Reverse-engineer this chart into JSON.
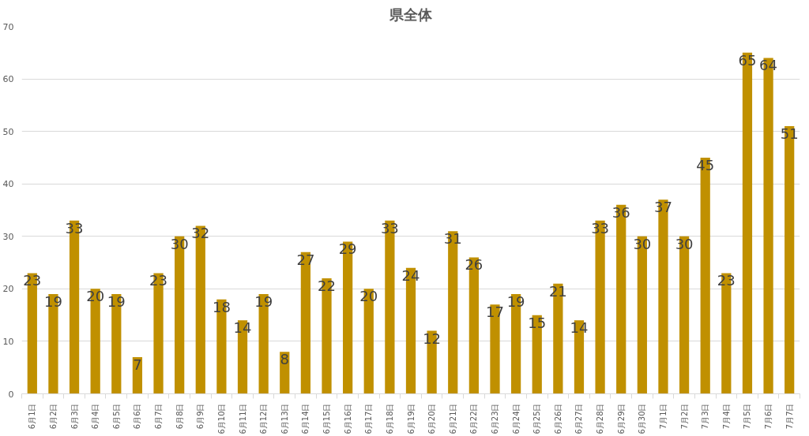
{
  "chart_data": {
    "type": "bar",
    "title": "県全体",
    "categories": [
      "6月1日",
      "6月2日",
      "6月3日",
      "6月4日",
      "6月5日",
      "6月6日",
      "6月7日",
      "6月8日",
      "6月9日",
      "6月10日",
      "6月11日",
      "6月12日",
      "6月13日",
      "6月14日",
      "6月15日",
      "6月16日",
      "6月17日",
      "6月18日",
      "6月19日",
      "6月20日",
      "6月21日",
      "6月22日",
      "6月23日",
      "6月24日",
      "6月25日",
      "6月26日",
      "6月27日",
      "6月28日",
      "6月29日",
      "6月30日",
      "7月1日",
      "7月2日",
      "7月3日",
      "7月4日",
      "7月5日",
      "7月6日",
      "7月7日"
    ],
    "values": [
      23,
      19,
      33,
      20,
      19,
      7,
      23,
      30,
      32,
      18,
      14,
      19,
      8,
      27,
      22,
      29,
      20,
      33,
      24,
      12,
      31,
      26,
      17,
      19,
      15,
      21,
      14,
      33,
      36,
      30,
      37,
      30,
      45,
      23,
      65,
      64,
      51
    ],
    "color": "#c09000",
    "ylim": [
      0,
      70
    ],
    "yticks": [
      0,
      10,
      20,
      30,
      40,
      50,
      60,
      70
    ],
    "grid": "y",
    "data_labels": true
  }
}
